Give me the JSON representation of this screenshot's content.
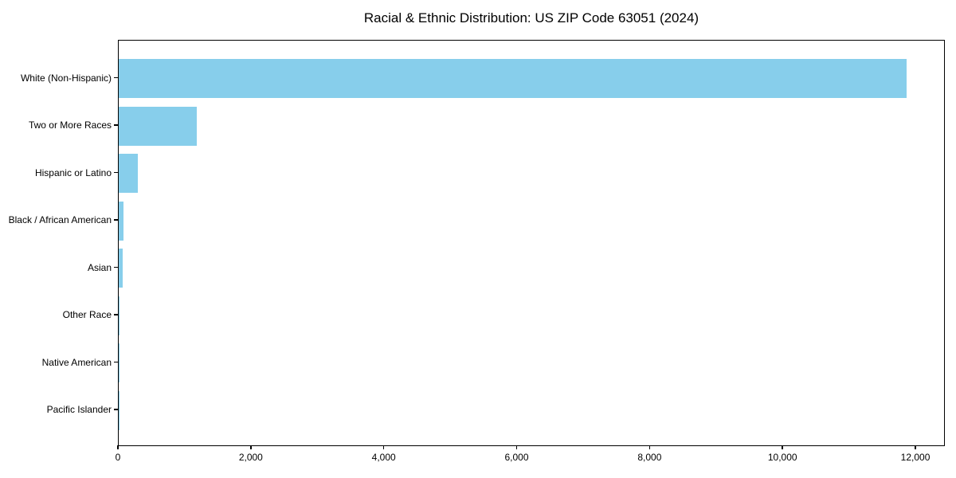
{
  "chart_data": {
    "type": "bar",
    "orientation": "horizontal",
    "title": "Racial & Ethnic Distribution: US ZIP Code 63051 (2024)",
    "categories": [
      "White (Non-Hispanic)",
      "Two or More Races",
      "Hispanic or Latino",
      "Black / African American",
      "Asian",
      "Other Race",
      "Native American",
      "Pacific Islander"
    ],
    "values": [
      11850,
      1180,
      285,
      70,
      65,
      15,
      8,
      2
    ],
    "xlabel": "",
    "ylabel": "",
    "xlim": [
      0,
      12443
    ],
    "xticks": [
      0,
      2000,
      4000,
      6000,
      8000,
      10000,
      12000
    ],
    "xtick_labels": [
      "0",
      "2,000",
      "4,000",
      "6,000",
      "8,000",
      "10,000",
      "12,000"
    ],
    "bar_color": "#87CEEB",
    "axis_color": "#000000",
    "text_color": "#000000",
    "background_color": "#FFFFFF",
    "grid": false,
    "legend": null
  }
}
